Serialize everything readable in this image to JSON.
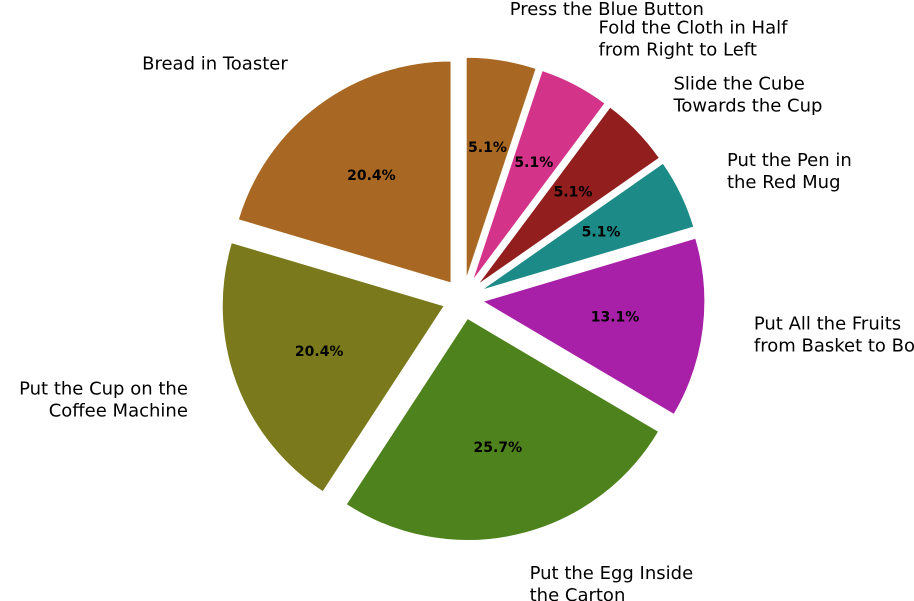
{
  "chart_data": {
    "type": "pie",
    "title": "",
    "start_angle_deg": 90,
    "direction": "counterclockwise",
    "slices": [
      {
        "label": "Bread in Toaster",
        "value": 20.4,
        "pct_label": "20.4%",
        "color": "#a86823",
        "explode": true
      },
      {
        "label": "Put the Cup on the Coffee Machine",
        "value": 20.4,
        "pct_label": "20.4%",
        "color": "#7a7a1c",
        "explode": true
      },
      {
        "label": "Put the Egg Inside the Carton",
        "value": 25.7,
        "pct_label": "25.7%",
        "color": "#4e821c",
        "explode": true
      },
      {
        "label": "Put All the Fruits from Basket to Box",
        "value": 13.1,
        "pct_label": "13.1%",
        "color": "#a820a8",
        "explode": true
      },
      {
        "label": "Put the Pen in the Red Mug",
        "value": 5.1,
        "pct_label": "5.1%",
        "color": "#1c8a87",
        "explode": true
      },
      {
        "label": "Slide the Cube Towards the Cup",
        "value": 5.1,
        "pct_label": "5.1%",
        "color": "#921e1e",
        "explode": true
      },
      {
        "label": "Fold the Cloth in Half from Right to Left",
        "value": 5.1,
        "pct_label": "5.1%",
        "color": "#d4338a",
        "explode": true
      },
      {
        "label": "Press the Blue Button",
        "value": 5.1,
        "pct_label": "5.1%",
        "color": "#a86823",
        "explode": true
      }
    ],
    "label_lines": [
      [
        "Bread in Toaster"
      ],
      [
        "Put the Cup on the",
        "Coffee Machine"
      ],
      [
        "Put the Egg Inside",
        "the Carton"
      ],
      [
        "Put All the Fruits",
        "from Basket to Box"
      ],
      [
        "Put the Pen in",
        "the Red Mug"
      ],
      [
        "Slide the Cube",
        "Towards the Cup"
      ],
      [
        "Fold the Cloth in Half",
        "from Right to Left"
      ],
      [
        "Press the Blue Button"
      ]
    ]
  }
}
